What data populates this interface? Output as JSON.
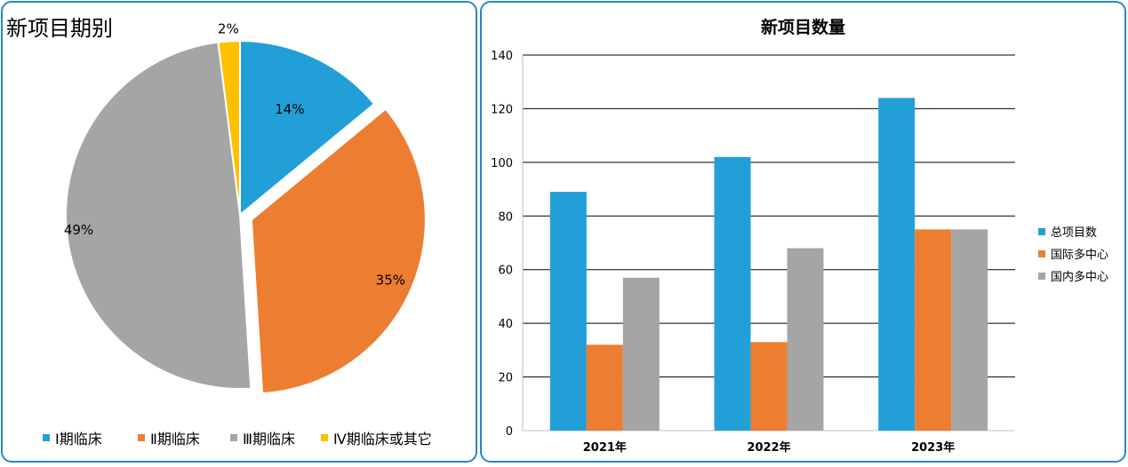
{
  "colors": {
    "blue": "#239fd8",
    "orange": "#ed7d31",
    "gray": "#a5a5a5",
    "yellow": "#ffc000",
    "panel_border": "#2a86c8",
    "grid": "#000000"
  },
  "chart_data": [
    {
      "type": "pie",
      "title": "新项目期别",
      "slices": [
        {
          "label": "Ⅰ期临床",
          "value": 14,
          "display": "14%",
          "color": "#239fd8"
        },
        {
          "label": "Ⅱ期临床",
          "value": 35,
          "display": "35%",
          "color": "#ed7d31"
        },
        {
          "label": "Ⅲ期临床",
          "value": 49,
          "display": "49%",
          "color": "#a5a5a5"
        },
        {
          "label": "Ⅳ期临床或其它",
          "value": 2,
          "display": "2%",
          "color": "#ffc000"
        }
      ],
      "exploded_slice": "Ⅱ期临床",
      "legend_position": "bottom"
    },
    {
      "type": "bar",
      "title": "新项目数量",
      "categories": [
        "2021年",
        "2022年",
        "2023年"
      ],
      "series": [
        {
          "name": "总项目数",
          "values": [
            89,
            102,
            124
          ],
          "color": "#239fd8"
        },
        {
          "name": "国际多中心",
          "values": [
            32,
            33,
            75
          ],
          "color": "#ed7d31"
        },
        {
          "name": "国内多中心",
          "values": [
            57,
            68,
            75
          ],
          "color": "#a5a5a5"
        }
      ],
      "ylim": [
        0,
        140
      ],
      "yticks": [
        "0",
        "20",
        "40",
        "60",
        "80",
        "100",
        "120",
        "140"
      ],
      "grid": true,
      "legend_position": "right"
    }
  ]
}
